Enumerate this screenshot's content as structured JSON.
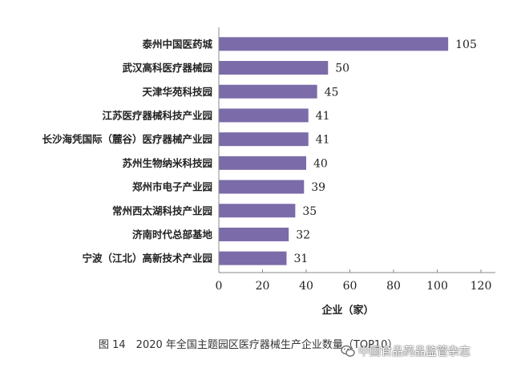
{
  "chart_data": {
    "type": "bar",
    "orientation": "horizontal",
    "categories": [
      "泰州中国医药城",
      "武汉高科医疗器械园",
      "天津华苑科技园",
      "江苏医疗器械科技产业园",
      "长沙海凭国际（麓谷）医疗器械产业园",
      "苏州生物纳米科技园",
      "郑州市电子产业园",
      "常州西太湖科技产业园",
      "济南时代总部基地",
      "宁波（江北）高新技术产业园"
    ],
    "values": [
      105,
      50,
      45,
      41,
      41,
      40,
      39,
      35,
      32,
      31
    ],
    "xlabel": "企业（家）",
    "xlim": [
      0,
      120
    ],
    "xticks": [
      0,
      20,
      40,
      60,
      80,
      100,
      120
    ],
    "grid": false,
    "bar_color": "#7b6ba8",
    "axis_color": "#8a8a8a"
  },
  "caption": "图 14　2020 年全国主题园区医疗器械生产企业数量（TOP10）",
  "watermark": {
    "icon": "wechat-icon",
    "text": "中国食品药品监管杂志"
  }
}
